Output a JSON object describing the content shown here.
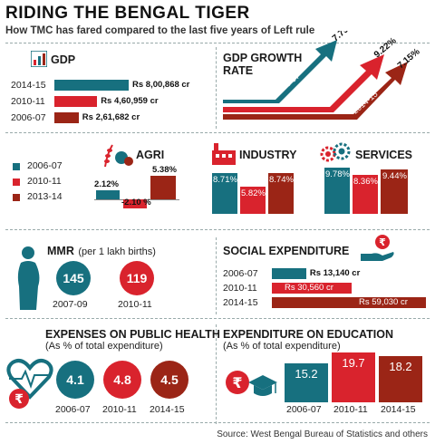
{
  "title": "RIDING THE BENGAL TIGER",
  "subtitle": "How TMC has fared compared to the last five years of Left rule",
  "colors": {
    "teal": "#17707f",
    "red": "#d9232d",
    "maroon": "#9b2516",
    "text": "#222222"
  },
  "source": "Source: West Bengal Bureau of Statistics and others",
  "chart_data": [
    {
      "type": "bar",
      "orientation": "horizontal",
      "title": "GDP",
      "categories": [
        "2014-15",
        "2010-11",
        "2006-07"
      ],
      "values": [
        800868,
        460959,
        261682
      ],
      "labels": [
        "Rs 8,00,868 cr",
        "Rs 4,60,959 cr",
        "Rs 2,61,682 cr"
      ]
    },
    {
      "type": "bar",
      "title": "GDP GROWTH RATE",
      "categories": [
        "2006-07",
        "2010-11",
        "2014-15"
      ],
      "values": [
        7.79,
        9.22,
        7.15
      ],
      "labels": [
        "7.79%",
        "9.22%",
        "7.15%"
      ]
    },
    {
      "type": "bar",
      "title": "AGRI",
      "legend": [
        "2006-07",
        "2010-11",
        "2013-14"
      ],
      "values": [
        2.12,
        -2.1,
        5.38
      ],
      "labels": [
        "2.12%",
        "-2.10 %",
        "5.38%"
      ]
    },
    {
      "type": "bar",
      "title": "INDUSTRY",
      "values": [
        8.71,
        5.82,
        8.74
      ],
      "labels": [
        "8.71%",
        "5.82%",
        "8.74%"
      ]
    },
    {
      "type": "bar",
      "title": "SERVICES",
      "values": [
        9.78,
        8.36,
        9.44
      ],
      "labels": [
        "9.78%",
        "8.36%",
        "9.44%"
      ]
    },
    {
      "type": "table",
      "title": "MMR",
      "note": "(per 1 lakh births)",
      "categories": [
        "2007-09",
        "2010-11"
      ],
      "values": [
        145,
        119
      ]
    },
    {
      "type": "bar",
      "orientation": "horizontal",
      "title": "SOCIAL EXPENDITURE",
      "categories": [
        "2006-07",
        "2010-11",
        "2014-15"
      ],
      "values": [
        13140,
        30560,
        59030
      ],
      "labels": [
        "Rs 13,140 cr",
        "Rs 30,560 cr",
        "Rs 59,030 cr"
      ]
    },
    {
      "type": "table",
      "title": "EXPENSES ON PUBLIC HEALTH",
      "note": "(As % of total expenditure)",
      "categories": [
        "2006-07",
        "2010-11",
        "2014-15"
      ],
      "values": [
        4.1,
        4.8,
        4.5
      ]
    },
    {
      "type": "bar",
      "title": "EXPENDITURE ON EDUCATION",
      "note": "(As % of total expenditure)",
      "categories": [
        "2006-07",
        "2010-11",
        "2014-15"
      ],
      "values": [
        15.2,
        19.7,
        18.2
      ]
    }
  ]
}
